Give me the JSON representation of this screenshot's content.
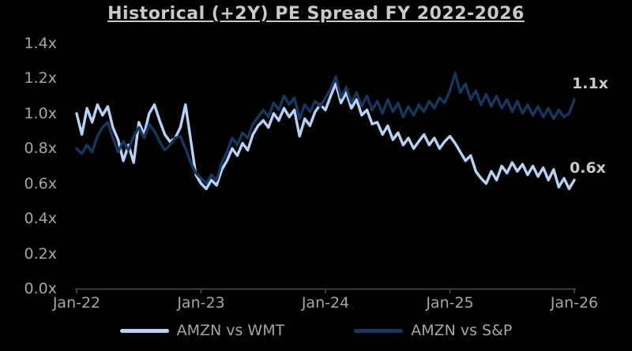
{
  "title": "Historical (+2Y) PE Spread FY 2022-2026",
  "colors": {
    "background": "#000000",
    "title_text": "#c9c9c9",
    "tick_text": "#a6a6a6",
    "end_label_text": "#cacaca",
    "axis_line": "#4d4d4d",
    "series_wmt": "#b9d1f3",
    "series_sp": "#17375e"
  },
  "chart_data": {
    "type": "line",
    "title": "Historical (+2Y) PE Spread FY 2022-2026",
    "grid": false,
    "legend_position": "bottom",
    "background": "#000000",
    "y_axis": {
      "min": 0.0,
      "max": 1.4,
      "step": 0.2,
      "unit": "x",
      "tick_labels": [
        "1.4x",
        "1.2x",
        "1.0x",
        "0.8x",
        "0.6x",
        "0.4x",
        "0.2x",
        "0.0x"
      ]
    },
    "x_axis": {
      "total_months": 48,
      "tick_months": [
        0,
        12,
        24,
        36,
        48
      ],
      "tick_labels": [
        "Jan-22",
        "Jan-23",
        "Jan-24",
        "Jan-25",
        "Jan-26"
      ]
    },
    "series": [
      {
        "id": "amzn-vs-wmt",
        "name": "AMZN vs WMT",
        "color": "#b9d1f3",
        "end_label": "0.6x",
        "x_step_months": 0.5,
        "values": [
          1.0,
          0.88,
          1.03,
          0.95,
          1.05,
          0.99,
          1.04,
          0.92,
          0.85,
          0.73,
          0.82,
          0.72,
          0.95,
          0.88,
          1.0,
          1.05,
          0.96,
          0.88,
          0.84,
          0.86,
          0.92,
          1.05,
          0.85,
          0.65,
          0.6,
          0.57,
          0.62,
          0.59,
          0.68,
          0.73,
          0.8,
          0.76,
          0.83,
          0.79,
          0.88,
          0.93,
          0.96,
          0.92,
          1.0,
          0.96,
          1.03,
          0.98,
          1.02,
          0.87,
          0.97,
          0.93,
          1.01,
          1.05,
          1.02,
          1.1,
          1.17,
          1.06,
          1.12,
          1.03,
          1.08,
          0.99,
          1.02,
          0.94,
          0.95,
          0.88,
          0.93,
          0.85,
          0.89,
          0.82,
          0.86,
          0.8,
          0.84,
          0.88,
          0.82,
          0.86,
          0.8,
          0.84,
          0.87,
          0.83,
          0.78,
          0.73,
          0.76,
          0.67,
          0.63,
          0.6,
          0.67,
          0.62,
          0.7,
          0.66,
          0.72,
          0.67,
          0.71,
          0.65,
          0.7,
          0.64,
          0.69,
          0.62,
          0.68,
          0.58,
          0.63,
          0.57,
          0.62
        ]
      },
      {
        "id": "amzn-vs-sp",
        "name": "AMZN vs S&P",
        "color": "#17375e",
        "end_label": "1.1x",
        "x_step_months": 0.5,
        "values": [
          0.8,
          0.77,
          0.82,
          0.78,
          0.87,
          0.92,
          0.95,
          0.86,
          0.78,
          0.84,
          0.79,
          0.87,
          0.92,
          0.86,
          0.94,
          0.9,
          0.84,
          0.79,
          0.82,
          0.86,
          0.87,
          0.8,
          0.72,
          0.66,
          0.63,
          0.6,
          0.65,
          0.62,
          0.72,
          0.78,
          0.86,
          0.82,
          0.89,
          0.86,
          0.94,
          0.98,
          1.02,
          0.98,
          1.06,
          1.02,
          1.1,
          1.05,
          1.09,
          0.97,
          1.05,
          1.01,
          1.07,
          1.04,
          1.09,
          1.14,
          1.21,
          1.09,
          1.15,
          1.06,
          1.12,
          1.04,
          1.1,
          1.02,
          1.07,
          1.0,
          1.08,
          1.01,
          1.06,
          0.98,
          1.04,
          0.99,
          1.05,
          1.01,
          1.07,
          1.03,
          1.09,
          1.06,
          1.13,
          1.23,
          1.12,
          1.17,
          1.08,
          1.13,
          1.05,
          1.11,
          1.04,
          1.1,
          1.03,
          1.08,
          1.01,
          1.07,
          1.0,
          1.05,
          0.99,
          1.04,
          0.98,
          1.03,
          0.97,
          1.02,
          0.98,
          1.0,
          1.08
        ]
      }
    ]
  },
  "legend": {
    "items": [
      {
        "label": "AMZN vs WMT"
      },
      {
        "label": "AMZN vs S&P"
      }
    ]
  }
}
